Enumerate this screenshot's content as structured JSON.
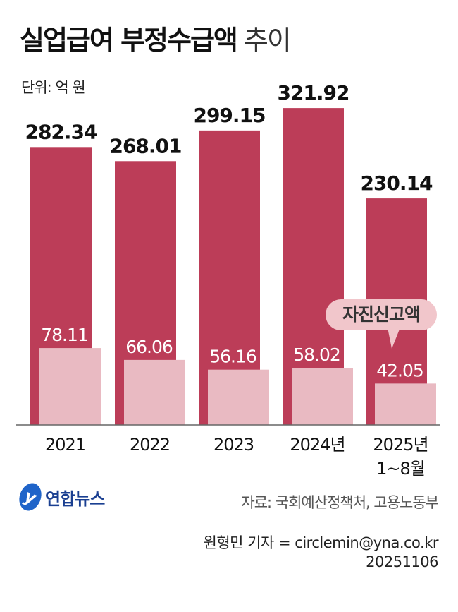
{
  "title_bold": "실업급여 부정수급액",
  "title_light": "추이",
  "unit": "단위: 억 원",
  "callout": "자진신고액",
  "logo": "연합뉴스",
  "source": "자료: 국회예산정책처, 고용노동부",
  "reporter": "원형민 기자 = circlemin@yna.co.kr",
  "date": "20251106",
  "chart_data": {
    "type": "bar",
    "title": "실업급여 부정수급액 추이",
    "categories": [
      "2021",
      "2022",
      "2023",
      "2024년",
      "2025년 1~8월"
    ],
    "category_lines": [
      [
        "2021"
      ],
      [
        "2022"
      ],
      [
        "2023"
      ],
      [
        "2024년"
      ],
      [
        "2025년",
        "1~8월"
      ]
    ],
    "series": [
      {
        "name": "부정수급액",
        "color": "#bc3d58",
        "values": [
          282.34,
          268.01,
          299.15,
          321.92,
          230.14
        ],
        "labels": [
          "282.34",
          "268.01",
          "299.15",
          "321.92",
          "230.14"
        ]
      },
      {
        "name": "자진신고액",
        "color": "#e9bac2",
        "values": [
          78.11,
          66.06,
          56.16,
          58.02,
          42.05
        ],
        "labels": [
          "78.11",
          "66.06",
          "56.16",
          "58.02",
          "42.05"
        ]
      }
    ],
    "ylabel": "억 원",
    "ylim": [
      0,
      322
    ],
    "grid": false
  }
}
